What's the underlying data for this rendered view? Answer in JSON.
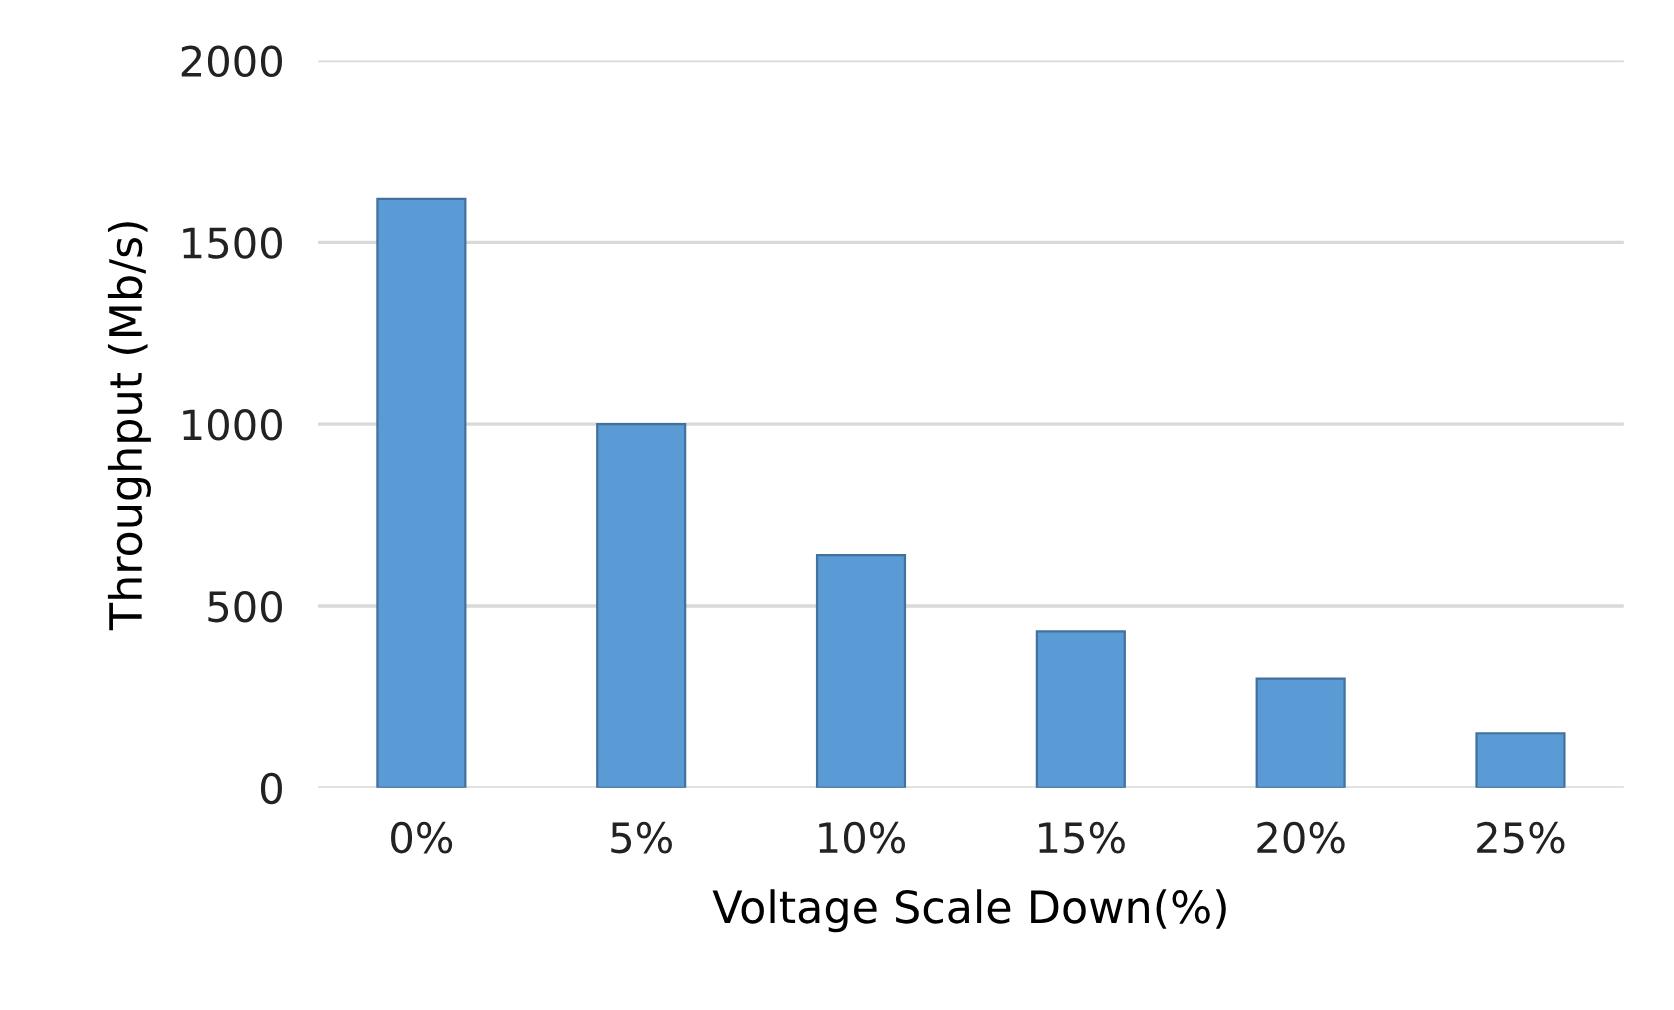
{
  "chart_data": {
    "type": "bar",
    "xlabel": "Voltage Scale Down(%)",
    "ylabel": "Throughput (Mb/s)",
    "categories": [
      "0%",
      "5%",
      "10%",
      "15%",
      "20%",
      "25%"
    ],
    "values": [
      1620,
      1000,
      640,
      430,
      300,
      150
    ],
    "color": "#5b9bd5",
    "ylim": [
      0,
      2000
    ],
    "yticks": [
      0,
      500,
      1000,
      1500,
      2000
    ],
    "grid": "y",
    "legend": false
  }
}
